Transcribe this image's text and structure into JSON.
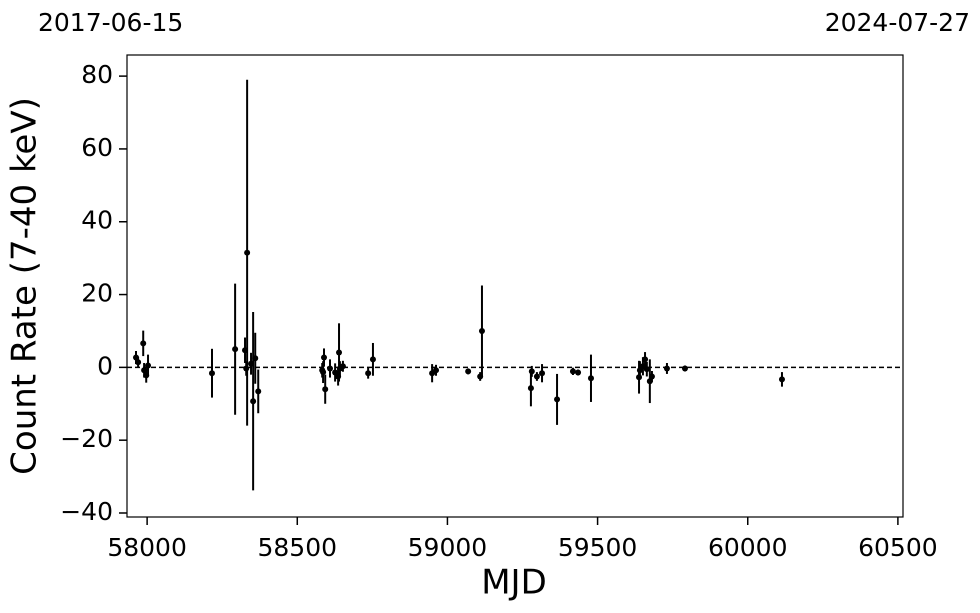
{
  "chart_data": {
    "type": "errorbar-scatter",
    "xlabel": "MJD",
    "ylabel": "Count Rate (7-40 keV)",
    "annotations": [
      "2017-06-15",
      "2024-07-27"
    ],
    "xlim": [
      57933,
      60517
    ],
    "ylim": [
      -41.1,
      85.8
    ],
    "xticks": [
      58000,
      58500,
      59000,
      59500,
      60000,
      60500
    ],
    "yticks": [
      {
        "value": -40,
        "label": "−40"
      },
      {
        "value": -20,
        "label": "−20"
      },
      0,
      20,
      40,
      60,
      80
    ],
    "hline": 0,
    "series": [
      {
        "color": "#000000",
        "x": [
          57963,
          57970,
          57987,
          57990,
          57997,
          58003,
          58216,
          58293,
          58326,
          58333,
          58330,
          58346,
          58353,
          58360,
          58370,
          58586,
          58589,
          58593,
          58583,
          58609,
          58626,
          58636,
          58639,
          58642,
          58652,
          58736,
          58752,
          58949,
          58962,
          59069,
          59109,
          59115,
          59278,
          59281,
          59298,
          59315,
          59365,
          59418,
          59435,
          59478,
          59638,
          59641,
          59651,
          59658,
          59664,
          59674,
          59681,
          59731,
          59791,
          60114
        ],
        "values": [
          2.7,
          1.4,
          6.6,
          -0.8,
          -2.2,
          0.5,
          -1.6,
          5,
          4.7,
          31.5,
          -0.3,
          1,
          -9.3,
          2.5,
          -6.6,
          -1.3,
          2.7,
          -6,
          -0.8,
          -0.3,
          -1.4,
          -2.5,
          4.1,
          -0.3,
          0.3,
          -1.6,
          2.2,
          -1.6,
          -0.8,
          -1.1,
          -2.5,
          10,
          -5.7,
          -1.1,
          -2.5,
          -1.6,
          -8.8,
          -1.1,
          -1.4,
          -3,
          -2.7,
          -0.8,
          0.3,
          2.2,
          -0.5,
          -3.8,
          -2.5,
          -0.3,
          -0.3,
          -3.3
        ],
        "errors": [
          1.8,
          1.5,
          3.5,
          2,
          2,
          3,
          6.7,
          18,
          3.5,
          47.5,
          2,
          3,
          24.5,
          7,
          6,
          3,
          2.5,
          4,
          2,
          2.5,
          2.5,
          2.5,
          8,
          2,
          1.5,
          1.5,
          4.5,
          2.5,
          1.5,
          0.8,
          1.2,
          12.5,
          5,
          1.5,
          1.2,
          2.5,
          7,
          1,
          0.8,
          6.5,
          4.5,
          2.5,
          2.5,
          2,
          2,
          6,
          1.5,
          1.5,
          0.8,
          2
        ]
      }
    ]
  }
}
